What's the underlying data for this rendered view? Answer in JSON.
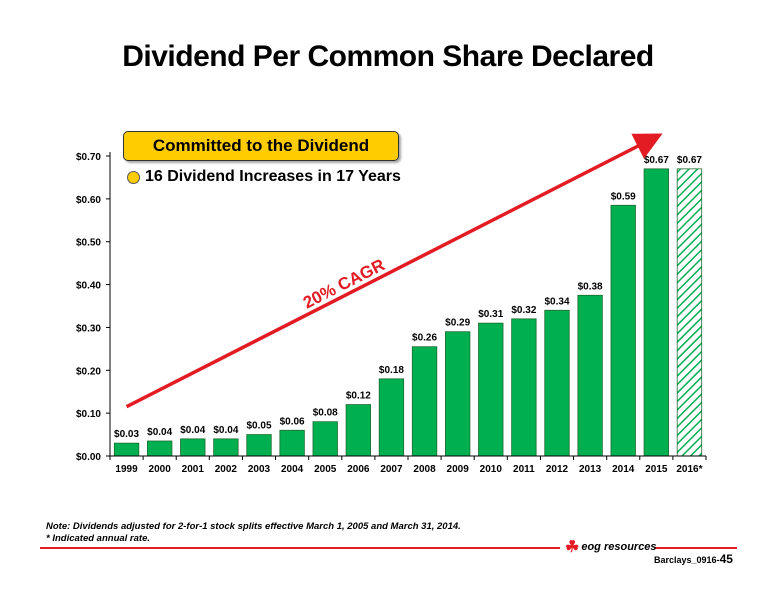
{
  "title": "Dividend Per Common Share Declared",
  "callout": {
    "text": "Committed to the Dividend",
    "bullet": "16 Dividend Increases in 17 Years"
  },
  "cagr_label": "20% CAGR",
  "notes": {
    "line1": "Note: Dividends adjusted for 2-for-1 stock splits effective March 1, 2005 and March 31, 2014.",
    "line2": "* Indicated annual rate."
  },
  "footer": {
    "logo_text": "eog resources",
    "ref_prefix": "Barclays_0916-",
    "page_number": "45"
  },
  "colors": {
    "bar": "#00b050",
    "bar_edge": "#1a6b2e",
    "arrow": "#e31b23",
    "accent": "#ffcc00"
  },
  "chart_data": {
    "type": "bar",
    "categories": [
      "1999",
      "2000",
      "2001",
      "2002",
      "2003",
      "2004",
      "2005",
      "2006",
      "2007",
      "2008",
      "2009",
      "2010",
      "2011",
      "2012",
      "2013",
      "2014",
      "2015",
      "2016*"
    ],
    "values": [
      0.03,
      0.035,
      0.04,
      0.04,
      0.05,
      0.06,
      0.08,
      0.12,
      0.18,
      0.255,
      0.29,
      0.31,
      0.32,
      0.34,
      0.375,
      0.585,
      0.67,
      0.67
    ],
    "labels": [
      "$0.03",
      "$0.04",
      "$0.04",
      "$0.04",
      "$0.05",
      "$0.06",
      "$0.08",
      "$0.12",
      "$0.18",
      "$0.26",
      "$0.29",
      "$0.31",
      "$0.32",
      "$0.34",
      "$0.38",
      "$0.59",
      "$0.67",
      "$0.67"
    ],
    "hatched": [
      false,
      false,
      false,
      false,
      false,
      false,
      false,
      false,
      false,
      false,
      false,
      false,
      false,
      false,
      false,
      false,
      false,
      true
    ],
    "ylim": [
      0,
      0.7
    ],
    "yticks": [
      "$0.00",
      "$0.10",
      "$0.20",
      "$0.30",
      "$0.40",
      "$0.50",
      "$0.60",
      "$0.70"
    ],
    "ytick_values": [
      0,
      0.1,
      0.2,
      0.3,
      0.4,
      0.5,
      0.6,
      0.7
    ],
    "trend_arrow": {
      "from": [
        "1999",
        0.115
      ],
      "to": [
        "2015",
        0.745
      ]
    }
  }
}
